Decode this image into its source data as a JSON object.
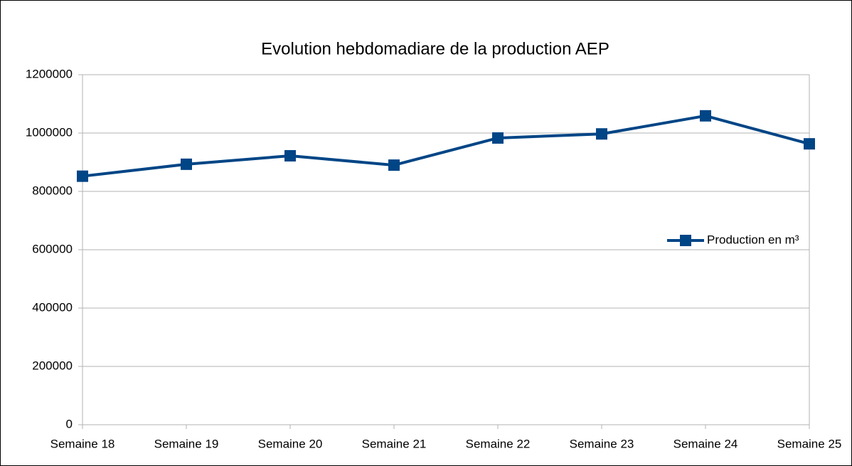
{
  "chart_data": {
    "type": "line",
    "title": "Evolution hebdomadiare de la production AEP",
    "categories": [
      "Semaine 18",
      "Semaine 19",
      "Semaine 20",
      "Semaine 21",
      "Semaine 22",
      "Semaine 23",
      "Semaine 24",
      "Semaine 25"
    ],
    "series": [
      {
        "name": "Production en m³",
        "color": "#004586",
        "values": [
          852000,
          893000,
          922000,
          890000,
          983000,
          997000,
          1059000,
          963000
        ]
      }
    ],
    "ylim": [
      0,
      1200000
    ],
    "yticks": [
      0,
      200000,
      400000,
      600000,
      800000,
      1000000,
      1200000
    ],
    "grid": true,
    "legend": "right"
  }
}
